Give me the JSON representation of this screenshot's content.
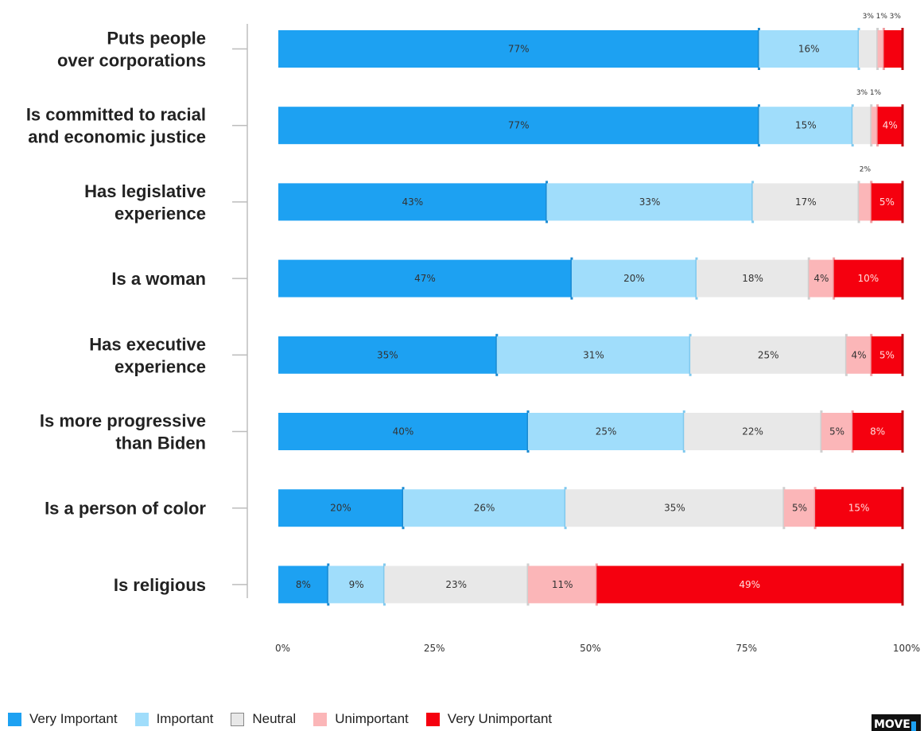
{
  "chart_data": {
    "type": "bar",
    "orientation": "horizontal",
    "stacked": true,
    "title": "",
    "xlabel": "",
    "ylabel": "",
    "xlim": [
      0,
      100
    ],
    "x_ticks": [
      "0%",
      "25%",
      "50%",
      "75%",
      "100%"
    ],
    "categories": [
      [
        "Puts people",
        "over corporations"
      ],
      [
        "Is committed to racial",
        "and economic justice"
      ],
      [
        "Has legislative",
        "experience"
      ],
      [
        "Is a woman"
      ],
      [
        "Has executive",
        "experience"
      ],
      [
        "Is more progressive",
        "than Biden"
      ],
      [
        "Is a person of color"
      ],
      [
        "Is religious"
      ]
    ],
    "series": [
      {
        "name": "Very Important",
        "color": "#1da1f2",
        "values": [
          77,
          77,
          43,
          47,
          35,
          40,
          20,
          8
        ]
      },
      {
        "name": "Important",
        "color": "#a0ddfb",
        "values": [
          16,
          15,
          33,
          20,
          31,
          25,
          26,
          9
        ]
      },
      {
        "name": "Neutral",
        "color": "#e8e8e8",
        "values": [
          3,
          3,
          17,
          18,
          25,
          22,
          35,
          23
        ]
      },
      {
        "name": "Unimportant",
        "color": "#fbb6b8",
        "values": [
          1,
          1,
          2,
          4,
          4,
          5,
          5,
          11
        ]
      },
      {
        "name": "Very Unimportant",
        "color": "#f5000f",
        "values": [
          3,
          4,
          5,
          10,
          5,
          8,
          15,
          49
        ]
      }
    ],
    "legend_position": "bottom-left",
    "grid": false
  },
  "legend": {
    "items": [
      {
        "label": "Very Important",
        "color": "#1da1f2"
      },
      {
        "label": "Important",
        "color": "#a0ddfb"
      },
      {
        "label": "Neutral",
        "color": "#e8e8e8"
      },
      {
        "label": "Unimportant",
        "color": "#fbb6b8"
      },
      {
        "label": "Very Unimportant",
        "color": "#f5000f"
      }
    ]
  },
  "logo": {
    "text": "MOVE"
  }
}
